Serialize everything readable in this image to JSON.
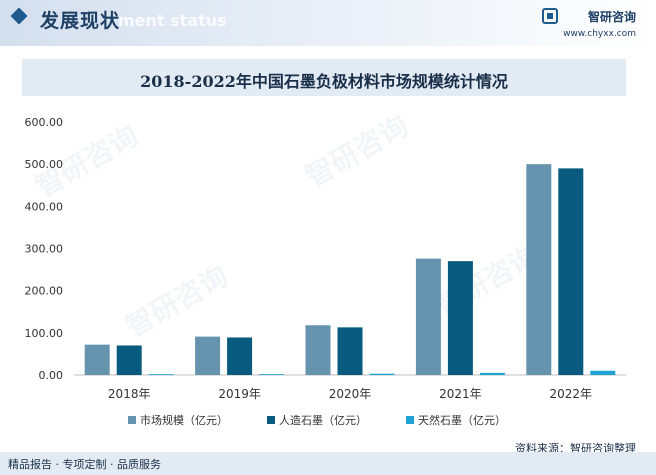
{
  "header": {
    "section_title": "发展现状",
    "section_subtitle": "ment status",
    "brand_name": "智研咨询",
    "brand_url": "www.chyxx.com"
  },
  "watermark_text": "智研咨询",
  "colors": {
    "series_1": "#6693ad",
    "series_2": "#085b7f",
    "series_3": "#1ea3d4",
    "header_accent": "#1e5a8e"
  },
  "chart_data": {
    "type": "bar",
    "title": "2018-2022年中国石墨负极材料市场规模统计情况",
    "categories": [
      "2018年",
      "2019年",
      "2020年",
      "2021年",
      "2022年"
    ],
    "series": [
      {
        "name": "市场规模（亿元）",
        "values": [
          72,
          91,
          118,
          276,
          500
        ]
      },
      {
        "name": "人造石墨（亿元）",
        "values": [
          70,
          89,
          113,
          270,
          490
        ]
      },
      {
        "name": "天然石墨（亿元）",
        "values": [
          2,
          2,
          3,
          5,
          10
        ]
      }
    ],
    "y_ticks": [
      "0.00",
      "100.00",
      "200.00",
      "300.00",
      "400.00",
      "500.00",
      "600.00"
    ],
    "ylim": [
      0,
      600
    ],
    "grid": false,
    "legend_position": "bottom"
  },
  "source_text": "资料来源：智研咨询整理",
  "footer_text": "精品报告 · 专项定制 · 品质服务"
}
